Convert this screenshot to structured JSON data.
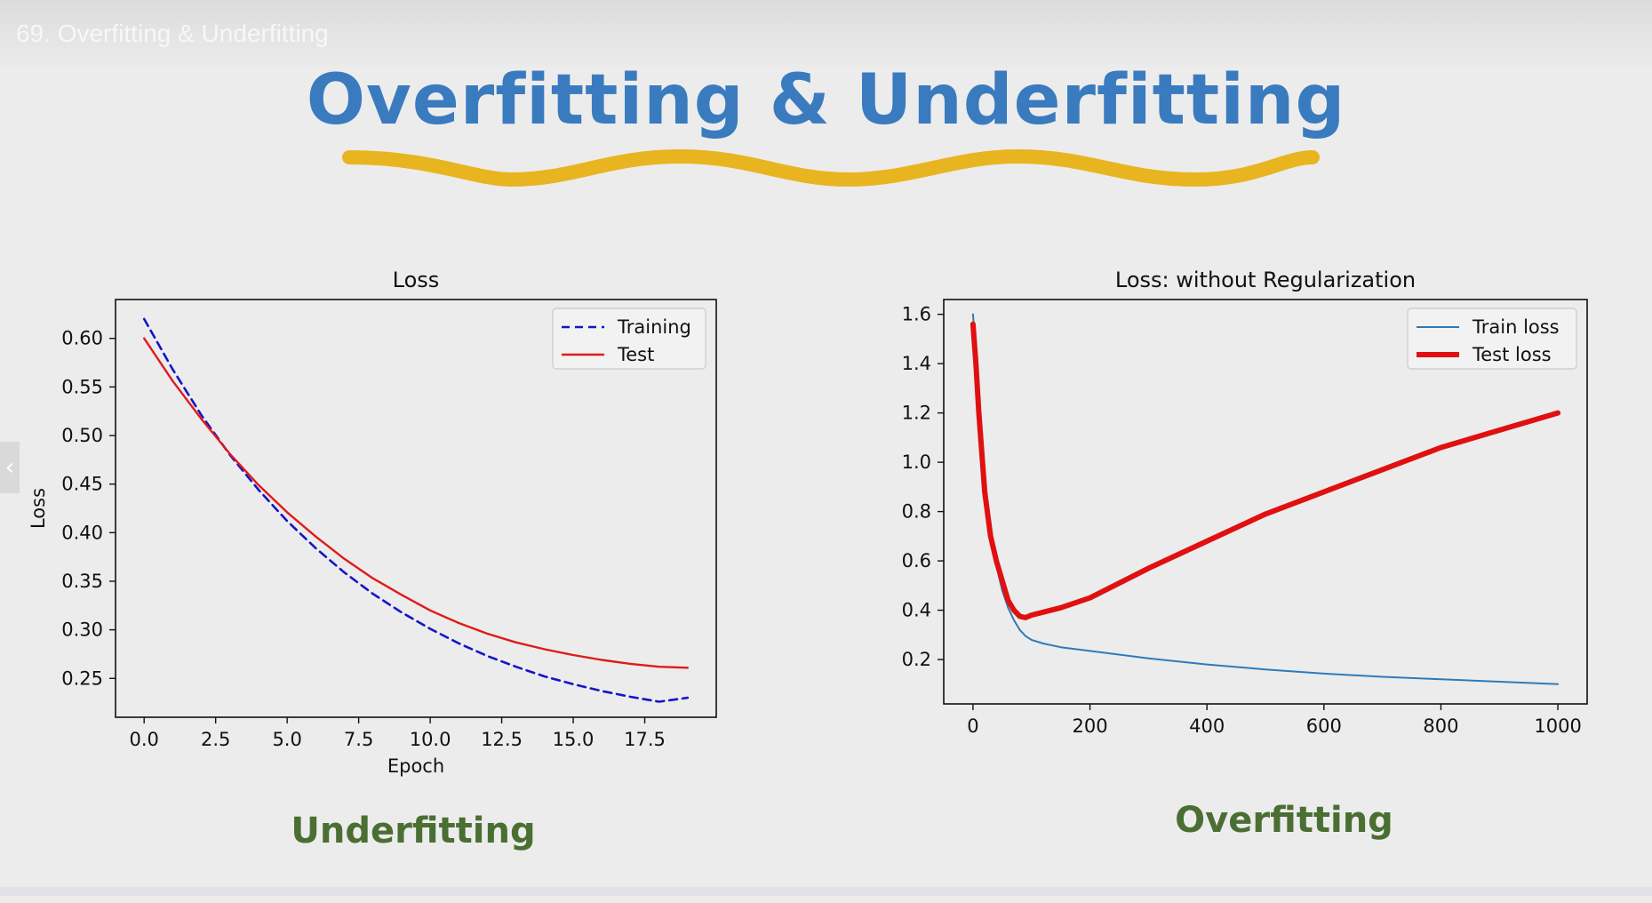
{
  "video_title": "69. Overfitting & Underfitting",
  "slide_title": "Overfitting & Underfitting",
  "nav_prev_icon": "chevron-left-icon",
  "colors": {
    "title_blue": "#3a7bbf",
    "wave_gold": "#e8b520",
    "caption_green": "#4b6e33",
    "training_dashed": "#1515c8",
    "test_red": "#e01a1a",
    "train_loss_blue": "#2f7ab8",
    "test_loss_red": "#e01010"
  },
  "captions": {
    "left": "Underfitting",
    "right": "Overfitting"
  },
  "chart_data": [
    {
      "type": "line",
      "title": "Loss",
      "xlabel": "Epoch",
      "ylabel": "Loss",
      "xlim": [
        -1,
        20
      ],
      "ylim": [
        0.21,
        0.64
      ],
      "xticks": [
        0.0,
        2.5,
        5.0,
        7.5,
        10.0,
        12.5,
        15.0,
        17.5
      ],
      "xtick_labels": [
        "0.0",
        "2.5",
        "5.0",
        "7.5",
        "10.0",
        "12.5",
        "15.0",
        "17.5"
      ],
      "yticks": [
        0.25,
        0.3,
        0.35,
        0.4,
        0.45,
        0.5,
        0.55,
        0.6
      ],
      "ytick_labels": [
        "0.25",
        "0.30",
        "0.35",
        "0.40",
        "0.45",
        "0.50",
        "0.55",
        "0.60"
      ],
      "grid": false,
      "legend": "top-right",
      "x": [
        0,
        1,
        2,
        3,
        4,
        5,
        6,
        7,
        8,
        9,
        10,
        11,
        12,
        13,
        14,
        15,
        16,
        17,
        18,
        19
      ],
      "series": [
        {
          "name": "Training",
          "style": "dashed",
          "color": "#1515c8",
          "values": [
            0.62,
            0.568,
            0.521,
            0.48,
            0.444,
            0.412,
            0.384,
            0.359,
            0.337,
            0.318,
            0.301,
            0.286,
            0.273,
            0.262,
            0.252,
            0.244,
            0.237,
            0.231,
            0.226,
            0.23
          ]
        },
        {
          "name": "Test",
          "style": "solid",
          "color": "#e01a1a",
          "values": [
            0.6,
            0.556,
            0.517,
            0.481,
            0.449,
            0.421,
            0.396,
            0.373,
            0.353,
            0.336,
            0.32,
            0.307,
            0.296,
            0.287,
            0.28,
            0.274,
            0.269,
            0.265,
            0.262,
            0.261
          ]
        }
      ]
    },
    {
      "type": "line",
      "title": "Loss: without Regularization",
      "xlabel": "",
      "ylabel": "",
      "xlim": [
        -50,
        1050
      ],
      "ylim": [
        0.02,
        1.66
      ],
      "xticks": [
        0,
        200,
        400,
        600,
        800,
        1000
      ],
      "xtick_labels": [
        "0",
        "200",
        "400",
        "600",
        "800",
        "1000"
      ],
      "yticks": [
        0.2,
        0.4,
        0.6,
        0.8,
        1.0,
        1.2,
        1.4,
        1.6
      ],
      "ytick_labels": [
        "0.2",
        "0.4",
        "0.6",
        "0.8",
        "1.0",
        "1.2",
        "1.4",
        "1.6"
      ],
      "grid": false,
      "legend": "top-right",
      "series": [
        {
          "name": "Train loss",
          "style": "thin",
          "color": "#2f7ab8",
          "x": [
            0,
            5,
            10,
            20,
            30,
            40,
            50,
            60,
            70,
            80,
            90,
            100,
            120,
            150,
            200,
            300,
            400,
            500,
            600,
            700,
            800,
            900,
            1000
          ],
          "values": [
            1.6,
            1.45,
            1.25,
            0.95,
            0.72,
            0.58,
            0.48,
            0.41,
            0.36,
            0.32,
            0.295,
            0.28,
            0.265,
            0.25,
            0.235,
            0.205,
            0.18,
            0.16,
            0.143,
            0.13,
            0.12,
            0.11,
            0.1
          ]
        },
        {
          "name": "Test loss",
          "style": "thick",
          "color": "#e01010",
          "x": [
            0,
            5,
            10,
            20,
            30,
            40,
            50,
            60,
            70,
            80,
            90,
            100,
            150,
            200,
            300,
            400,
            500,
            600,
            700,
            800,
            900,
            1000
          ],
          "values": [
            1.56,
            1.4,
            1.2,
            0.88,
            0.7,
            0.6,
            0.52,
            0.44,
            0.4,
            0.375,
            0.37,
            0.38,
            0.41,
            0.45,
            0.57,
            0.68,
            0.79,
            0.88,
            0.97,
            1.06,
            1.13,
            1.2
          ]
        }
      ]
    }
  ]
}
